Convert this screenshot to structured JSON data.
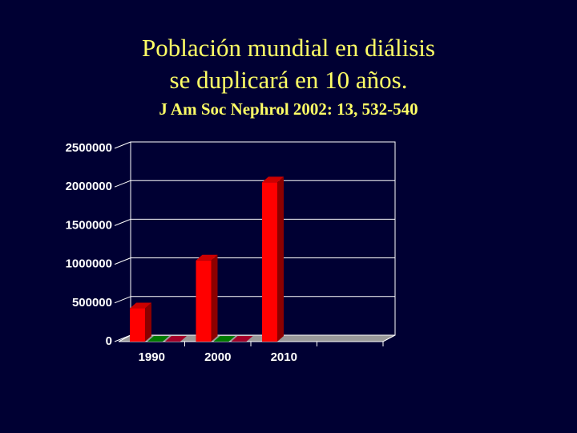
{
  "chart_data": {
    "type": "bar3d",
    "title": [
      "Población mundial en diálisis",
      "se duplicará en 10 años."
    ],
    "subtitle": "J Am Soc Nephrol 2002: 13, 532-540",
    "categories": [
      "1990",
      "2000",
      "2010",
      null
    ],
    "series": [
      {
        "color": "#ff0000",
        "values": [
          430000,
          1050000,
          2060000,
          null
        ]
      },
      {
        "color": "#009900",
        "values": [
          0,
          0,
          null,
          null
        ]
      },
      {
        "color": "#cc0033",
        "values": [
          0,
          0,
          null,
          null
        ]
      }
    ],
    "ylim": [
      0,
      2500000
    ],
    "yticks": [
      0,
      500000,
      1000000,
      1500000,
      2000000,
      2500000
    ],
    "grid": true
  }
}
